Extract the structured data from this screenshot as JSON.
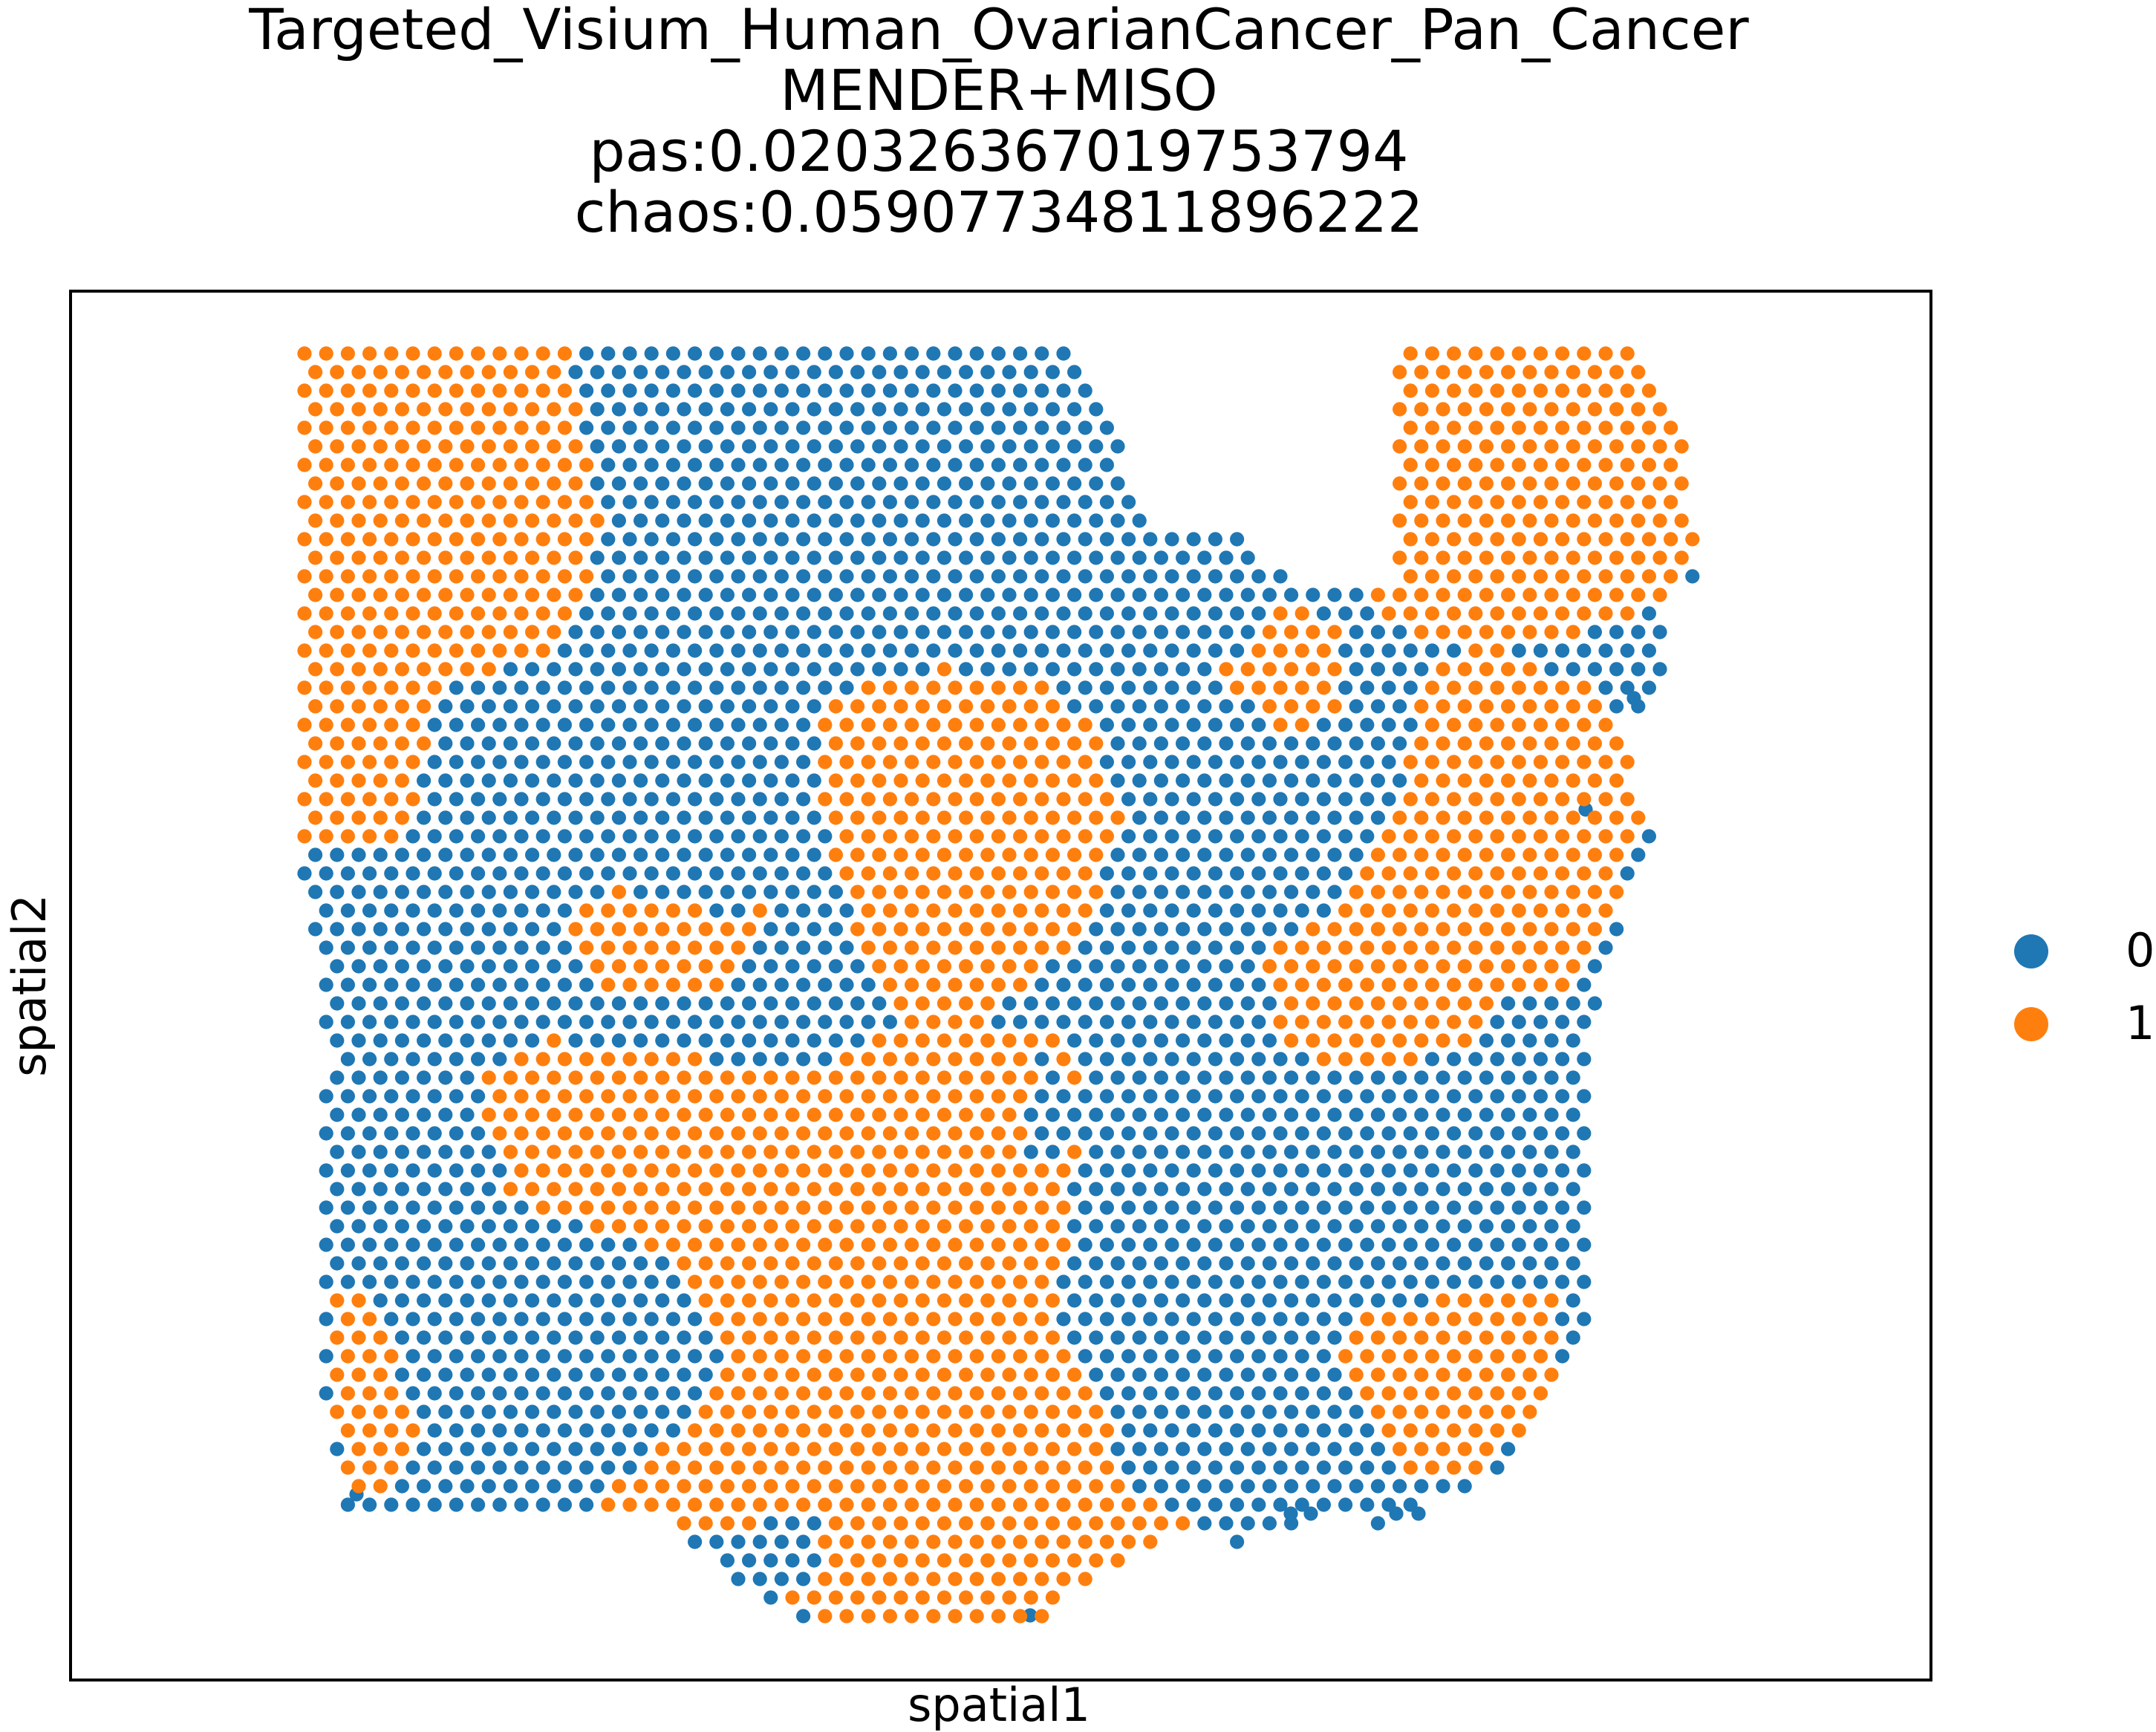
{
  "chart_data": {
    "type": "scatter",
    "title": "Targeted_Visium_Human_OvarianCancer_Pan_Cancer",
    "subtitle": [
      "MENDER+MISO",
      "pas:0.020326367019753794",
      "chaos:0.05907734811896222"
    ],
    "xlabel": "spatial1",
    "ylabel": "spatial2",
    "legend_position": "right",
    "grid": false,
    "series": [
      {
        "name": "0",
        "color": "#1f77b4"
      },
      {
        "name": "1",
        "color": "#ff7f0e"
      }
    ]
  }
}
